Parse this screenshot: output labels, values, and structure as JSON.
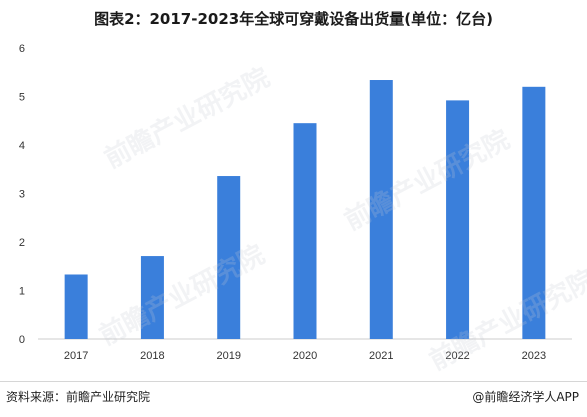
{
  "title": "图表2：2017-2023年全球可穿戴设备出货量(单位：亿台)",
  "source": "资料来源：前瞻产业研究院",
  "brand": "@前瞻经济学人APP",
  "watermark": "前瞻产业研究院",
  "colors": {
    "bar": "#3a7fdb",
    "axis": "#cccccc",
    "tick_text": "#333333"
  },
  "chart_data": {
    "type": "bar",
    "categories": [
      "2017",
      "2018",
      "2019",
      "2020",
      "2021",
      "2022",
      "2023"
    ],
    "values": [
      1.33,
      1.71,
      3.36,
      4.45,
      5.34,
      4.92,
      5.2
    ],
    "ylim": [
      0,
      6
    ],
    "yticks": [
      "0",
      "1",
      "2",
      "3",
      "4",
      "5",
      "6"
    ],
    "grid": false,
    "xlabel": "",
    "ylabel": ""
  }
}
